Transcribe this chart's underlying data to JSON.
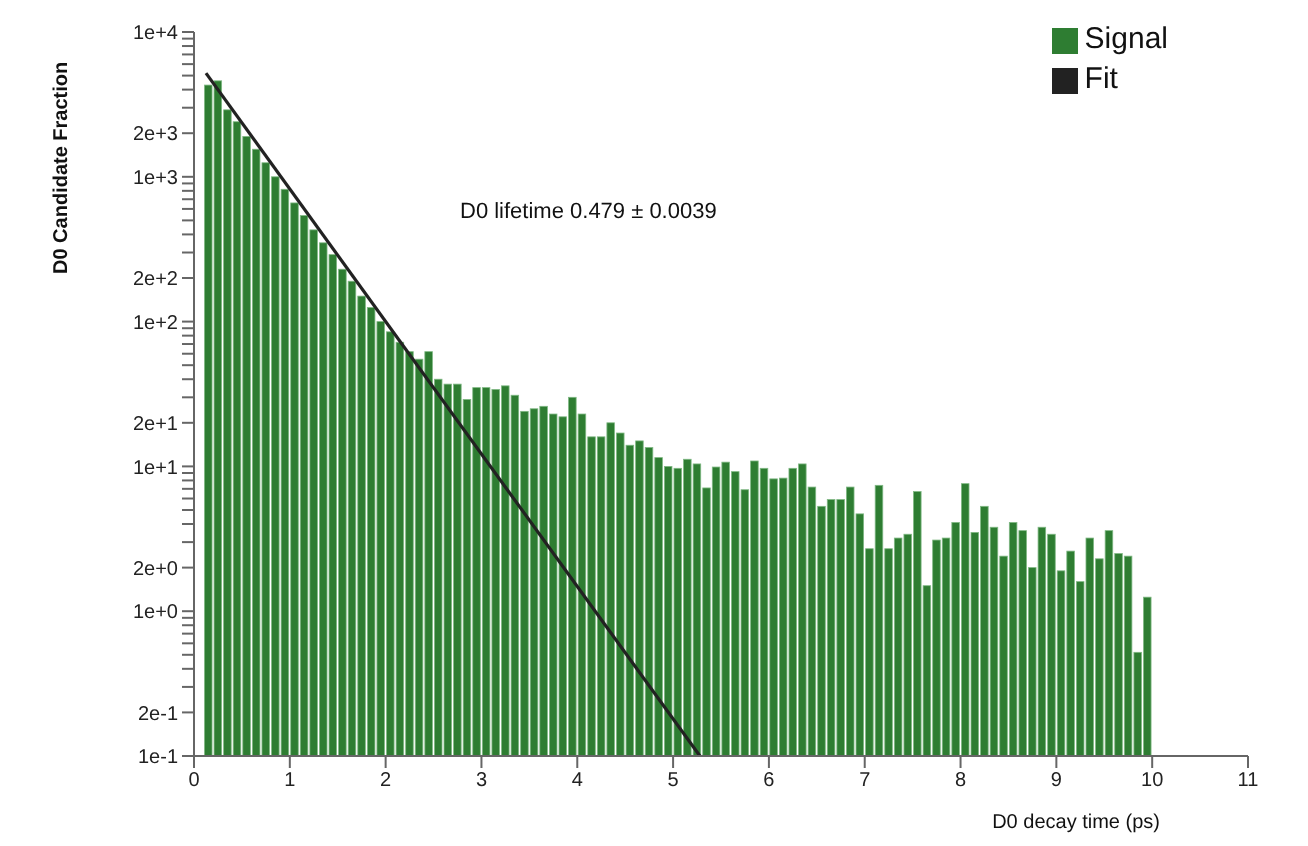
{
  "chart_data": {
    "type": "histogram",
    "xlabel": "D0 decay time (ps)",
    "ylabel": "D0 Candidate Fraction",
    "annotations": [
      "D0 lifetime 0.479 ± 0.0039"
    ],
    "bins": [
      0.1,
      0.2,
      0.3,
      0.4,
      0.5,
      0.6,
      0.7,
      0.8,
      0.9,
      1.0,
      1.1,
      1.2,
      1.3,
      1.4,
      1.5,
      1.6,
      1.7,
      1.8,
      1.9,
      2.0,
      2.1,
      2.2,
      2.3,
      2.4,
      2.5,
      2.6,
      2.7,
      2.8,
      2.9,
      3.0,
      3.1,
      3.2,
      3.3,
      3.4,
      3.5,
      3.6,
      3.7,
      3.8,
      3.9,
      4.0,
      4.1,
      4.2,
      4.3,
      4.4,
      4.5,
      4.6,
      4.7,
      4.8,
      4.9,
      5.0,
      5.1,
      5.2,
      5.3,
      5.4,
      5.5,
      5.6,
      5.7,
      5.8,
      5.9,
      6.0,
      6.1,
      6.2,
      6.3,
      6.4,
      6.5,
      6.6,
      6.7,
      6.8,
      6.9,
      7.0,
      7.1,
      7.2,
      7.3,
      7.4,
      7.5,
      7.6,
      7.7,
      7.8,
      7.9,
      8.0,
      8.1,
      8.2,
      8.3,
      8.4,
      8.5,
      8.6,
      8.7,
      8.8,
      8.9,
      9.0,
      9.1,
      9.2,
      9.3,
      9.4,
      9.5,
      9.6,
      9.7,
      9.8,
      9.9,
      10.0
    ],
    "series": [
      {
        "name": "Signal",
        "color": "#2e7d32",
        "values": [
          4300,
          4600,
          2900,
          2400,
          1900,
          1550,
          1250,
          1000,
          820,
          660,
          540,
          430,
          350,
          290,
          230,
          190,
          150,
          125,
          100,
          85,
          72,
          62,
          55,
          62,
          40,
          37,
          37,
          29,
          35,
          35,
          34,
          36,
          31,
          24,
          25,
          26,
          23,
          22,
          30,
          23,
          16,
          16,
          20,
          17,
          14,
          15,
          13.5,
          11.5,
          10,
          9.7,
          11.2,
          10.4,
          7.1,
          9.9,
          10.7,
          9.2,
          6.9,
          10.9,
          9.7,
          8.2,
          8.3,
          9.7,
          10.4,
          7.2,
          5.3,
          5.9,
          5.9,
          7.2,
          4.7,
          2.7,
          7.4,
          2.7,
          3.2,
          3.4,
          6.7,
          1.5,
          3.1,
          3.2,
          4.1,
          7.6,
          3.5,
          5.3,
          3.8,
          2.4,
          4.1,
          3.6,
          2.0,
          3.8,
          3.4,
          1.9,
          2.6,
          1.6,
          3.2,
          2.3,
          3.6,
          2.5,
          2.4,
          0.52,
          1.25
        ]
      },
      {
        "name": "Fit",
        "type": "line",
        "color": "#222222",
        "x": [
          0.125,
          5.28
        ],
        "values": [
          5200,
          0.1
        ]
      }
    ],
    "xlim": [
      0,
      11
    ],
    "xticks": [
      0,
      1,
      2,
      3,
      4,
      5,
      6,
      7,
      8,
      9,
      10,
      11
    ],
    "ylim": [
      0.1,
      10000
    ],
    "log": "y",
    "yticks": [
      {
        "value": 0.1,
        "label": "1e-1"
      },
      {
        "value": 0.2,
        "label": "2e-1"
      },
      {
        "value": 0.3,
        "label": null
      },
      {
        "value": 0.4,
        "label": null
      },
      {
        "value": 0.5,
        "label": null
      },
      {
        "value": 0.6,
        "label": null
      },
      {
        "value": 0.7,
        "label": null
      },
      {
        "value": 0.8,
        "label": null
      },
      {
        "value": 0.9,
        "label": null
      },
      {
        "value": 1,
        "label": "1e+0"
      },
      {
        "value": 2,
        "label": "2e+0"
      },
      {
        "value": 3,
        "label": null
      },
      {
        "value": 4,
        "label": null
      },
      {
        "value": 5,
        "label": null
      },
      {
        "value": 6,
        "label": null
      },
      {
        "value": 7,
        "label": null
      },
      {
        "value": 8,
        "label": null
      },
      {
        "value": 9,
        "label": null
      },
      {
        "value": 10,
        "label": "1e+1"
      },
      {
        "value": 20,
        "label": "2e+1"
      },
      {
        "value": 30,
        "label": null
      },
      {
        "value": 40,
        "label": null
      },
      {
        "value": 50,
        "label": null
      },
      {
        "value": 60,
        "label": null
      },
      {
        "value": 70,
        "label": null
      },
      {
        "value": 80,
        "label": null
      },
      {
        "value": 90,
        "label": null
      },
      {
        "value": 100,
        "label": "1e+2"
      },
      {
        "value": 200,
        "label": "2e+2"
      },
      {
        "value": 300,
        "label": null
      },
      {
        "value": 400,
        "label": null
      },
      {
        "value": 500,
        "label": null
      },
      {
        "value": 600,
        "label": null
      },
      {
        "value": 700,
        "label": null
      },
      {
        "value": 800,
        "label": null
      },
      {
        "value": 900,
        "label": null
      },
      {
        "value": 1000,
        "label": "1e+3"
      },
      {
        "value": 2000,
        "label": "2e+3"
      },
      {
        "value": 3000,
        "label": null
      },
      {
        "value": 4000,
        "label": null
      },
      {
        "value": 5000,
        "label": null
      },
      {
        "value": 6000,
        "label": null
      },
      {
        "value": 7000,
        "label": null
      },
      {
        "value": 8000,
        "label": null
      },
      {
        "value": 9000,
        "label": null
      },
      {
        "value": 10000,
        "label": "1e+4"
      }
    ],
    "grid": false,
    "legend": "top right",
    "marker": "none"
  }
}
